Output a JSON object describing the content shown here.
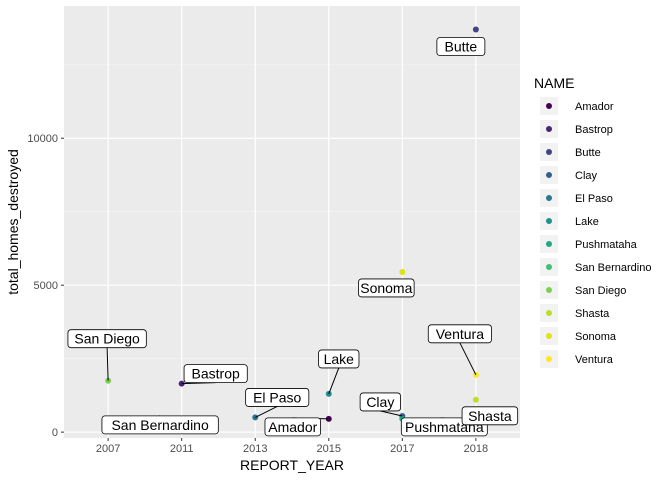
{
  "chart_data": {
    "type": "scatter",
    "title": "",
    "xlabel": "REPORT_YEAR",
    "ylabel": "total_homes_destroyed",
    "x_categories": [
      "2007",
      "2011",
      "2013",
      "2015",
      "2017",
      "2018"
    ],
    "y_ticks": [
      0,
      5000,
      10000
    ],
    "ylim": [
      -200,
      14500
    ],
    "grid": true,
    "legend": {
      "title": "NAME",
      "placement": "right",
      "entries": [
        {
          "name": "Amador",
          "color": "#440154"
        },
        {
          "name": "Bastrop",
          "color": "#482576"
        },
        {
          "name": "Butte",
          "color": "#414487"
        },
        {
          "name": "Clay",
          "color": "#35608D"
        },
        {
          "name": "El Paso",
          "color": "#2A788E"
        },
        {
          "name": "Lake",
          "color": "#21908C"
        },
        {
          "name": "Pushmataha",
          "color": "#22A884"
        },
        {
          "name": "San Bernardino",
          "color": "#43BF71"
        },
        {
          "name": "San Diego",
          "color": "#7AD151"
        },
        {
          "name": "Shasta",
          "color": "#BBDF27"
        },
        {
          "name": "Sonoma",
          "color": "#DDE318"
        },
        {
          "name": "Ventura",
          "color": "#FDE725"
        }
      ]
    },
    "points": [
      {
        "name": "Amador",
        "x": "2015",
        "y": 450
      },
      {
        "name": "Bastrop",
        "x": "2011",
        "y": 1650
      },
      {
        "name": "Butte",
        "x": "2018",
        "y": 13700
      },
      {
        "name": "Clay",
        "x": "2017",
        "y": 550
      },
      {
        "name": "El Paso",
        "x": "2013",
        "y": 500
      },
      {
        "name": "Lake",
        "x": "2015",
        "y": 1300
      },
      {
        "name": "Pushmataha",
        "x": "2017",
        "y": 450
      },
      {
        "name": "San Bernardino",
        "x": "2007",
        "y": 450
      },
      {
        "name": "San Diego",
        "x": "2007",
        "y": 1750
      },
      {
        "name": "Shasta",
        "x": "2018",
        "y": 1100
      },
      {
        "name": "Sonoma",
        "x": "2017",
        "y": 5450
      },
      {
        "name": "Ventura",
        "x": "2018",
        "y": 1950
      }
    ]
  }
}
